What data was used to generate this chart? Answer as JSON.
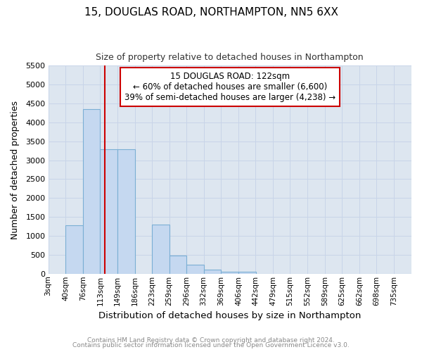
{
  "title": "15, DOUGLAS ROAD, NORTHAMPTON, NN5 6XX",
  "subtitle": "Size of property relative to detached houses in Northampton",
  "xlabel": "Distribution of detached houses by size in Northampton",
  "ylabel": "Number of detached properties",
  "footer_line1": "Contains HM Land Registry data © Crown copyright and database right 2024.",
  "footer_line2": "Contains public sector information licensed under the Open Government Licence v3.0.",
  "annotation_title": "15 DOUGLAS ROAD: 122sqm",
  "annotation_line2": "← 60% of detached houses are smaller (6,600)",
  "annotation_line3": "39% of semi-detached houses are larger (4,238) →",
  "bar_color": "#c5d8f0",
  "bar_edge_color": "#7bafd4",
  "vline_color": "#cc0000",
  "vline_x": 3,
  "categories": [
    "3sqm",
    "40sqm",
    "76sqm",
    "113sqm",
    "149sqm",
    "186sqm",
    "223sqm",
    "259sqm",
    "296sqm",
    "332sqm",
    "369sqm",
    "406sqm",
    "442sqm",
    "479sqm",
    "515sqm",
    "552sqm",
    "589sqm",
    "625sqm",
    "662sqm",
    "698sqm",
    "735sqm"
  ],
  "bin_starts": [
    3,
    40,
    76,
    113,
    149,
    186,
    223,
    259,
    296,
    332,
    369,
    406,
    442,
    479,
    515,
    552,
    589,
    625,
    662,
    698,
    735
  ],
  "bin_width": 37,
  "values": [
    0,
    1275,
    4350,
    3300,
    3300,
    0,
    1300,
    480,
    240,
    100,
    60,
    60,
    0,
    0,
    0,
    0,
    0,
    0,
    0,
    0,
    0
  ],
  "ylim": [
    0,
    5500
  ],
  "yticks": [
    0,
    500,
    1000,
    1500,
    2000,
    2500,
    3000,
    3500,
    4000,
    4500,
    5000,
    5500
  ],
  "grid_color": "#c8d4e8",
  "bg_color": "#dde6f0",
  "fig_bg": "#ffffff",
  "annotation_box_color": "#ffffff",
  "annotation_border_color": "#cc0000",
  "vline_position": 122
}
